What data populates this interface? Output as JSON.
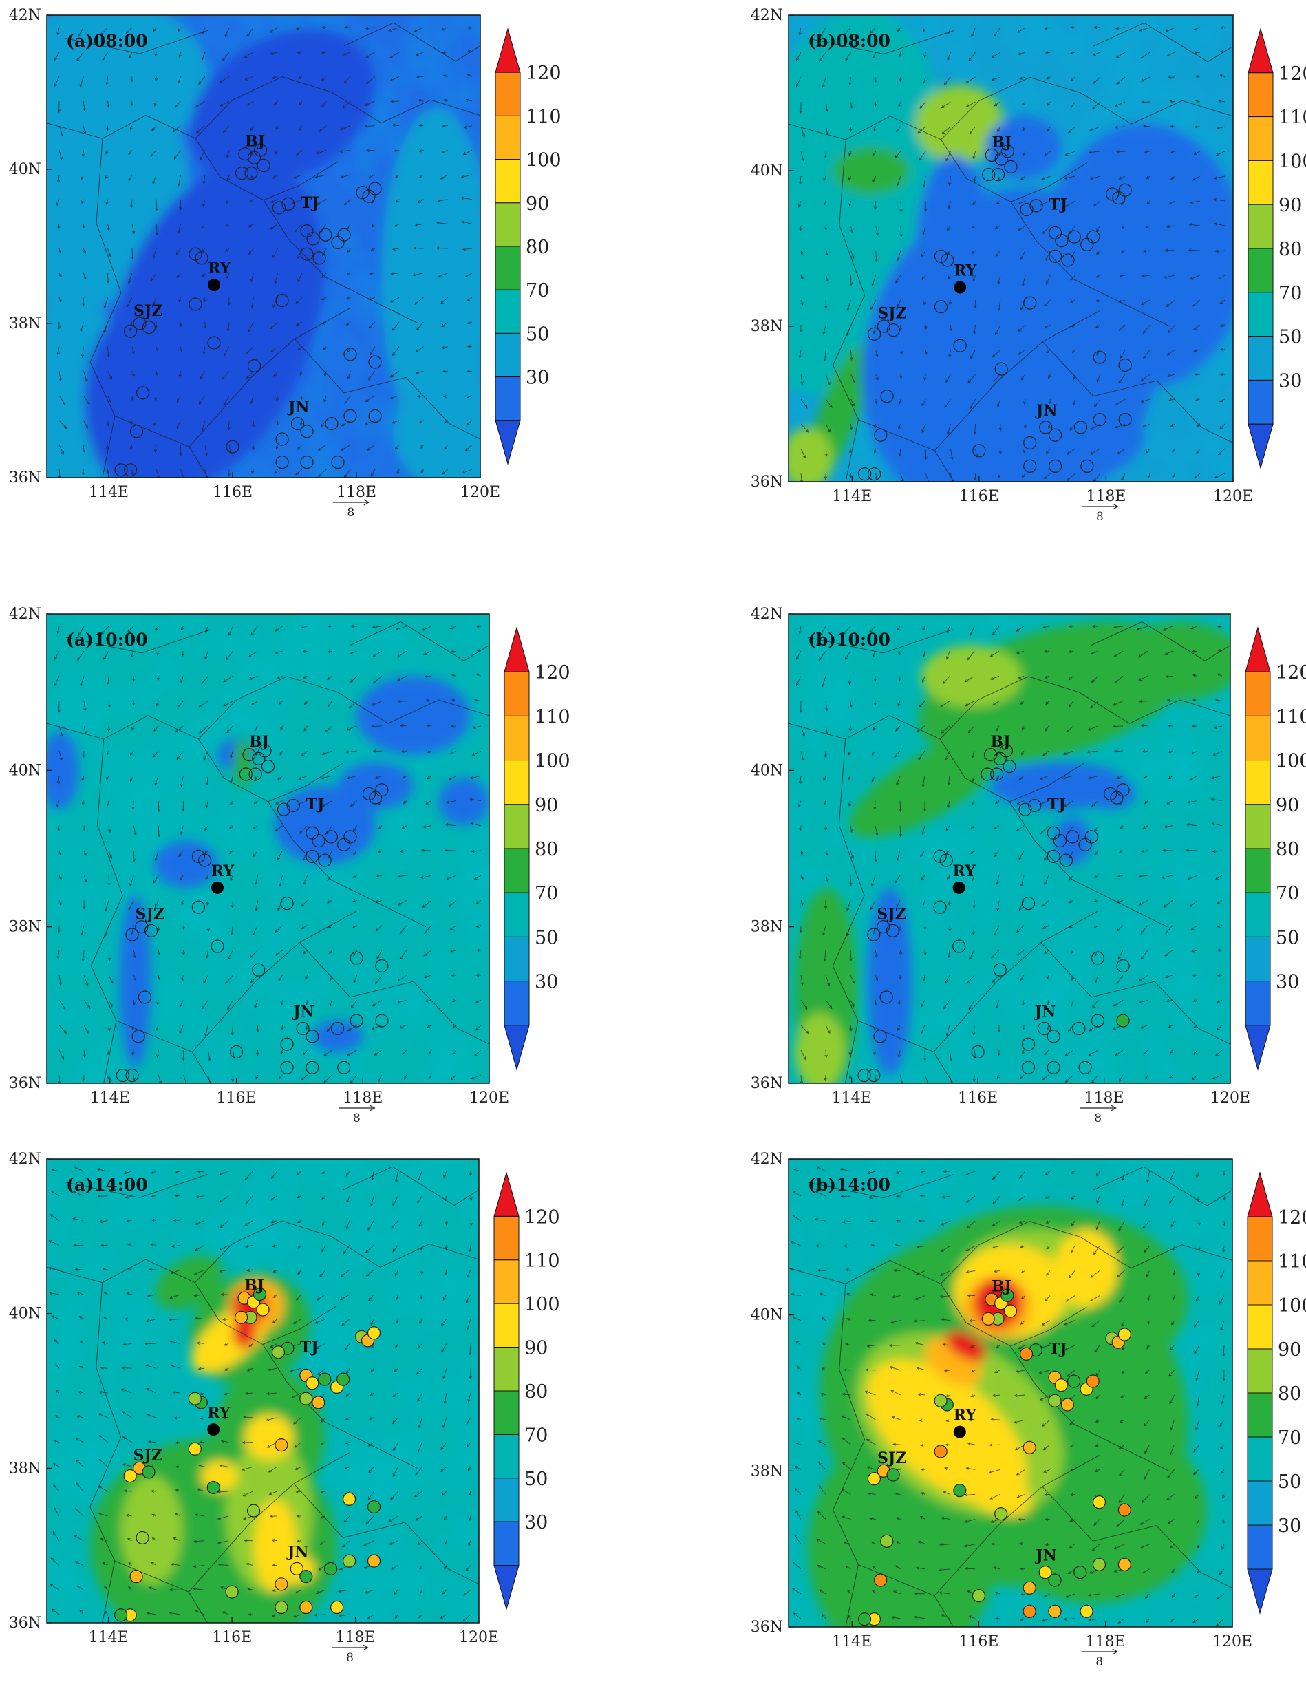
{
  "figure": {
    "rows": [
      [
        "(a)08:00",
        "(b)08:00"
      ],
      [
        "(a)10:00",
        "(b)10:00"
      ],
      [
        "(a)14:00",
        "(b)14:00"
      ]
    ],
    "x_ticks": [
      "114E",
      "116E",
      "118E",
      "120E"
    ],
    "y_ticks": [
      "36N",
      "38N",
      "40N",
      "42N"
    ],
    "colorbar_ticks": [
      "120",
      "110",
      "100",
      "90",
      "80",
      "70",
      "50",
      "30"
    ],
    "colorbar_colors": [
      "#e8141e",
      "#fd8c14",
      "#ffb419",
      "#ffdc14",
      "#91cd32",
      "#2aae3c",
      "#00b4b4",
      "#0fa0d2",
      "#1e6ee6",
      "#1e50dc"
    ],
    "reference_vector_label": "8",
    "cities": [
      {
        "label": "BJ",
        "lon": 116.2,
        "lat": 40.3
      },
      {
        "label": "TJ",
        "lon": 117.1,
        "lat": 39.5
      },
      {
        "label": "RY",
        "lon": 115.6,
        "lat": 38.65
      },
      {
        "label": "SJZ",
        "lon": 114.4,
        "lat": 38.1
      },
      {
        "label": "JN",
        "lon": 116.9,
        "lat": 36.85
      }
    ],
    "ry_site": {
      "lon": 115.7,
      "lat": 38.5
    },
    "stations": [
      [
        116.2,
        40.2
      ],
      [
        116.35,
        40.15
      ],
      [
        116.45,
        40.25
      ],
      [
        116.3,
        39.95
      ],
      [
        116.15,
        39.95
      ],
      [
        116.5,
        40.05
      ],
      [
        116.9,
        39.55
      ],
      [
        116.75,
        39.5
      ],
      [
        117.2,
        39.2
      ],
      [
        117.3,
        39.1
      ],
      [
        117.5,
        39.15
      ],
      [
        117.2,
        38.9
      ],
      [
        117.4,
        38.85
      ],
      [
        117.7,
        39.05
      ],
      [
        117.8,
        39.15
      ],
      [
        118.1,
        39.7
      ],
      [
        118.2,
        39.65
      ],
      [
        118.3,
        39.75
      ],
      [
        115.5,
        38.85
      ],
      [
        115.4,
        38.9
      ],
      [
        116.8,
        38.3
      ],
      [
        115.4,
        38.25
      ],
      [
        115.7,
        37.75
      ],
      [
        116.35,
        37.45
      ],
      [
        114.5,
        38.0
      ],
      [
        114.35,
        37.9
      ],
      [
        114.65,
        37.95
      ],
      [
        114.55,
        37.1
      ],
      [
        114.45,
        36.6
      ],
      [
        114.35,
        36.1
      ],
      [
        114.2,
        36.1
      ],
      [
        116.0,
        36.4
      ],
      [
        116.8,
        36.5
      ],
      [
        117.05,
        36.7
      ],
      [
        117.2,
        36.6
      ],
      [
        116.8,
        36.2
      ],
      [
        117.2,
        36.2
      ],
      [
        117.7,
        36.2
      ],
      [
        117.6,
        36.7
      ],
      [
        117.9,
        36.8
      ],
      [
        118.3,
        36.8
      ],
      [
        117.9,
        37.6
      ],
      [
        118.3,
        37.5
      ]
    ]
  }
}
